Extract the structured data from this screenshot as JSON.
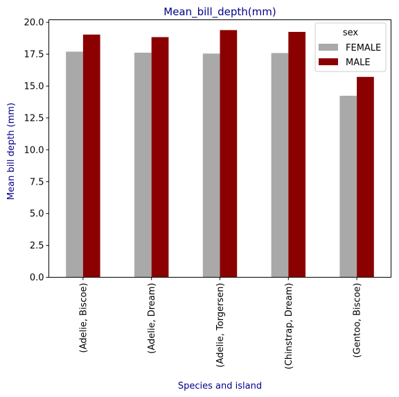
{
  "chart_data": {
    "type": "bar",
    "title": "Mean_bill_depth(mm)",
    "xlabel": "Species and island",
    "ylabel": "Mean bill depth (mm)",
    "label_color": "#00008b",
    "categories": [
      "(Adelie, Biscoe)",
      "(Adelie, Dream)",
      "(Adelie, Torgersen)",
      "(Chinstrap, Dream)",
      "(Gentoo, Biscoe)"
    ],
    "series": [
      {
        "name": "FEMALE",
        "color": "#a9a9a9",
        "values": [
          17.7,
          17.62,
          17.55,
          17.59,
          14.24
        ]
      },
      {
        "name": "MALE",
        "color": "#8b0000",
        "values": [
          19.04,
          18.84,
          19.39,
          19.25,
          15.72
        ]
      }
    ],
    "ylim": [
      0,
      20.2
    ],
    "yticks": [
      "0.0",
      "2.5",
      "5.0",
      "7.5",
      "10.0",
      "12.5",
      "15.0",
      "17.5",
      "20.0"
    ],
    "grid": false,
    "legend": {
      "title": "sex",
      "position": "top-right"
    }
  }
}
